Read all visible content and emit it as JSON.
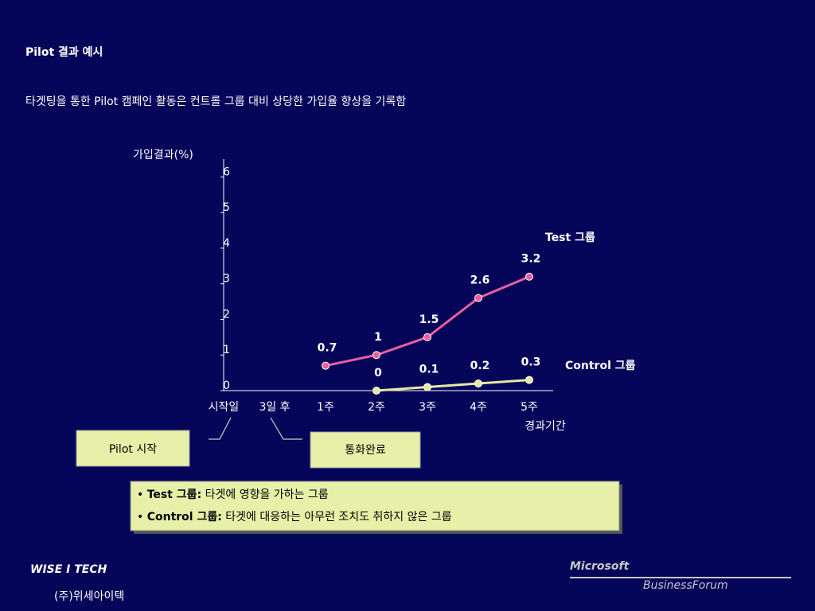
{
  "chart_data": {
    "type": "line",
    "title": "Pilot 결과 예시",
    "subtitle": "타겟팅을 통한 Pilot 캠페인 활동은 컨트롤 그룹 대비 상당한 가입율 향상을 기록함",
    "y_label": "가입결과(%)",
    "x_label": "경과기간",
    "categories": [
      "시작일",
      "3일 후",
      "1주",
      "2주",
      "3주",
      "4주",
      "5주"
    ],
    "series": [
      {
        "name": "Test 그룹",
        "color": "#e8609c",
        "values": [
          null,
          null,
          0.7,
          1.0,
          1.5,
          2.6,
          3.2
        ]
      },
      {
        "name": "Control 그룹",
        "color": "#e6e8a0",
        "values": [
          null,
          null,
          null,
          0,
          0.1,
          0.2,
          0.3
        ]
      }
    ],
    "ylim": [
      0,
      6.5
    ],
    "yticks": [
      0,
      1,
      2,
      3,
      4,
      5,
      6
    ],
    "callouts": [
      "Pilot 시작",
      "통화완료"
    ],
    "notes": [
      {
        "term": "Test 그룹:",
        "text": "타겟에 영향을 가하는 그룹"
      },
      {
        "term": "Control 그룹:",
        "text": "타겟에 대응하는 아무런 조치도 취하지 않은 그룹"
      }
    ],
    "logos": {
      "left": "WISE I TECH",
      "left_sub": "(주)위세아이텍",
      "right": "Microsoft",
      "right_sub": "BusinessForum"
    }
  }
}
